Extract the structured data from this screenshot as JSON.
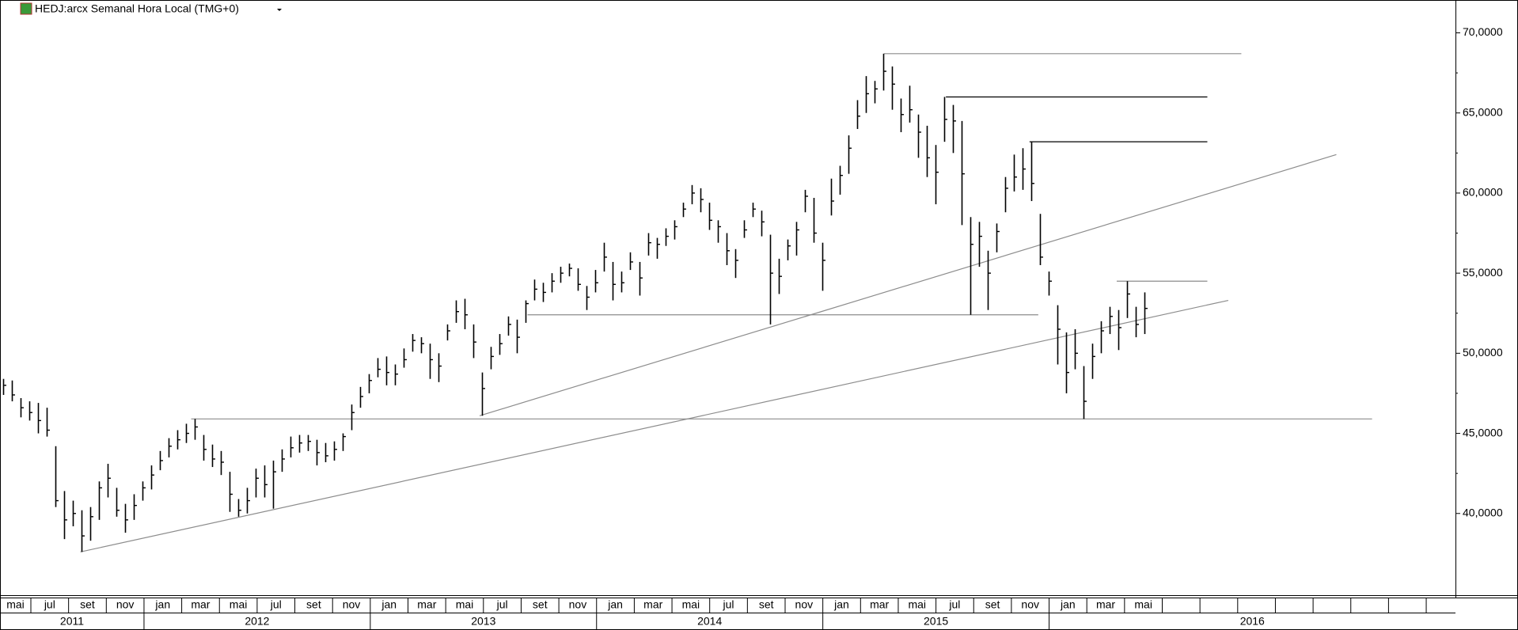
{
  "chart_data": {
    "type": "ohlc",
    "title": "HEDJ:arcx Semanal Hora Local (TMG+0)",
    "color": "#000000",
    "high": [
      48.4,
      48.3,
      47.2,
      47.0,
      46.9,
      46.6,
      44.2,
      41.4,
      40.8,
      40.2,
      40.4,
      42.0,
      43.1,
      41.6,
      40.6,
      41.2,
      42.0,
      43.0,
      43.9,
      44.7,
      45.2,
      45.6,
      45.9,
      44.9,
      44.3,
      43.9,
      42.6,
      40.9,
      41.6,
      42.8,
      43.0,
      43.3,
      44.0,
      44.8,
      44.9,
      44.9,
      44.6,
      44.4,
      44.5,
      45.0,
      46.8,
      47.9,
      48.7,
      49.7,
      49.8,
      49.3,
      50.3,
      51.2,
      51.0,
      50.6,
      50.0,
      51.8,
      53.3,
      53.4,
      51.8,
      48.8,
      50.4,
      51.2,
      52.3,
      52.1,
      53.3,
      54.6,
      54.4,
      55.0,
      55.4,
      55.6,
      55.3,
      54.2,
      55.2,
      56.9,
      55.7,
      55.1,
      56.3,
      55.7,
      57.5,
      57.2,
      57.8,
      58.3,
      59.4,
      60.5,
      60.3,
      59.4,
      58.3,
      57.5,
      56.5,
      58.3,
      59.4,
      58.9,
      57.4,
      55.9,
      57.1,
      58.2,
      60.2,
      59.7,
      56.9,
      60.9,
      61.7,
      63.6,
      65.8,
      67.3,
      67.0,
      68.7,
      67.9,
      65.9,
      66.7,
      64.9,
      64.2,
      63.0,
      66.0,
      65.5,
      64.5,
      58.5,
      58.2,
      56.4,
      58.1,
      61.0,
      62.4,
      62.8,
      63.2,
      58.7,
      55.1,
      53.0,
      51.3,
      51.5,
      49.2,
      50.6,
      52.0,
      52.9,
      52.7,
      54.5,
      52.9,
      53.8
    ],
    "low": [
      47.4,
      47.0,
      46.0,
      45.8,
      45.0,
      44.8,
      40.4,
      38.4,
      39.2,
      37.6,
      38.3,
      39.6,
      41.0,
      39.8,
      38.8,
      39.6,
      40.8,
      41.5,
      42.7,
      43.5,
      44.0,
      44.4,
      44.6,
      43.3,
      42.9,
      42.4,
      40.1,
      39.8,
      40.0,
      41.0,
      41.0,
      40.3,
      42.6,
      43.5,
      43.8,
      43.9,
      43.0,
      43.2,
      43.3,
      43.9,
      45.2,
      46.6,
      47.5,
      48.5,
      48.0,
      48.0,
      49.1,
      50.1,
      50.0,
      48.4,
      48.2,
      50.8,
      51.9,
      51.5,
      49.7,
      46.1,
      49.0,
      49.9,
      51.1,
      50.0,
      51.9,
      53.3,
      53.2,
      53.8,
      54.4,
      54.8,
      53.9,
      52.7,
      53.8,
      55.1,
      53.3,
      53.8,
      55.2,
      53.6,
      56.1,
      55.9,
      56.7,
      57.1,
      58.5,
      59.3,
      58.8,
      57.7,
      56.9,
      55.5,
      54.7,
      57.2,
      58.5,
      57.3,
      51.8,
      53.7,
      55.8,
      56.1,
      58.8,
      56.9,
      53.9,
      58.6,
      59.9,
      61.2,
      64.0,
      65.0,
      65.6,
      66.4,
      65.2,
      63.8,
      64.4,
      62.2,
      61.0,
      59.3,
      63.2,
      62.5,
      58.0,
      52.4,
      55.4,
      52.7,
      56.3,
      58.8,
      60.1,
      60.2,
      59.5,
      55.5,
      53.6,
      49.3,
      47.5,
      49.0,
      45.9,
      48.4,
      50.0,
      51.2,
      50.2,
      52.2,
      51.0,
      51.2
    ],
    "close": [
      48.0,
      47.4,
      46.6,
      46.3,
      45.8,
      45.2,
      40.8,
      39.6,
      40.0,
      38.6,
      39.8,
      41.6,
      42.2,
      40.2,
      39.6,
      40.5,
      41.6,
      42.4,
      43.3,
      44.2,
      44.6,
      45.0,
      45.4,
      44.0,
      43.4,
      43.2,
      41.2,
      40.2,
      40.8,
      42.2,
      41.8,
      42.6,
      43.4,
      44.1,
      44.4,
      44.5,
      43.8,
      43.6,
      44.0,
      44.8,
      46.3,
      47.3,
      48.3,
      49.0,
      48.8,
      48.7,
      49.6,
      50.8,
      50.6,
      49.6,
      49.2,
      51.4,
      52.6,
      52.4,
      50.7,
      47.8,
      49.8,
      50.6,
      51.8,
      51.0,
      53.1,
      54.0,
      53.8,
      54.5,
      55.0,
      55.3,
      54.3,
      53.5,
      54.4,
      56.0,
      54.3,
      54.4,
      55.7,
      54.7,
      56.9,
      56.8,
      57.3,
      57.9,
      59.0,
      60.0,
      59.6,
      58.3,
      57.9,
      56.4,
      55.8,
      57.7,
      59.0,
      58.2,
      55.0,
      54.8,
      56.7,
      57.7,
      59.8,
      57.5,
      55.8,
      59.5,
      61.1,
      62.8,
      64.8,
      66.2,
      66.5,
      67.6,
      66.8,
      64.9,
      65.2,
      63.8,
      62.2,
      61.3,
      64.6,
      64.5,
      61.2,
      56.8,
      57.3,
      55.0,
      57.6,
      60.3,
      61.0,
      61.5,
      60.6,
      56.0,
      54.5,
      51.5,
      48.8,
      50.0,
      47.0,
      49.8,
      51.4,
      52.3,
      51.6,
      53.7,
      51.8,
      52.8
    ],
    "xlim": [
      -0.33,
      166.67
    ],
    "ylim": [
      34.9,
      72.05
    ],
    "yticks": [
      {
        "value": 40,
        "label": "40,0000"
      },
      {
        "value": 45,
        "label": "45,0000"
      },
      {
        "value": 50,
        "label": "50,0000"
      },
      {
        "value": 55,
        "label": "55,0000"
      },
      {
        "value": 60,
        "label": "60,0000"
      },
      {
        "value": 65,
        "label": "65,0000"
      },
      {
        "value": 70,
        "label": "70,0000"
      }
    ],
    "lines": [
      {
        "x": [
          21.6,
          157.1
        ],
        "y": [
          45.9,
          45.9
        ],
        "color": "#8c8c8c"
      },
      {
        "x": [
          60.2,
          118.8
        ],
        "y": [
          52.4,
          52.4
        ],
        "color": "#8c8c8c"
      },
      {
        "x": [
          101.1,
          142.1
        ],
        "y": [
          68.7,
          68.7
        ],
        "color": "#8c8c8c"
      },
      {
        "x": [
          108.2,
          138.2
        ],
        "y": [
          66.0,
          66.0
        ],
        "color": "#000000"
      },
      {
        "x": [
          117.8,
          138.2
        ],
        "y": [
          63.2,
          63.2
        ],
        "color": "#000000"
      },
      {
        "x": [
          127.8,
          138.2
        ],
        "y": [
          54.5,
          54.5
        ],
        "color": "#8c8c8c"
      },
      {
        "x": [
          8.9,
          140.6
        ],
        "y": [
          37.6,
          53.3
        ],
        "color": "#8c8c8c"
      },
      {
        "x": [
          54.7,
          153.0
        ],
        "y": [
          46.1,
          62.4
        ],
        "color": "#8c8c8c"
      }
    ],
    "months": [
      "mai",
      "jul",
      "set",
      "nov",
      "jan",
      "mar",
      "mai",
      "jul",
      "set",
      "nov",
      "jan",
      "mar",
      "mai",
      "jul",
      "set",
      "nov",
      "jan",
      "mar",
      "mai",
      "jul",
      "set",
      "nov",
      "jan",
      "mar",
      "mai",
      "jul",
      "set",
      "nov",
      "jan",
      "mar",
      "mai"
    ],
    "years": [
      "2011",
      "2012",
      "2013",
      "2014",
      "2015",
      "2016"
    ]
  }
}
